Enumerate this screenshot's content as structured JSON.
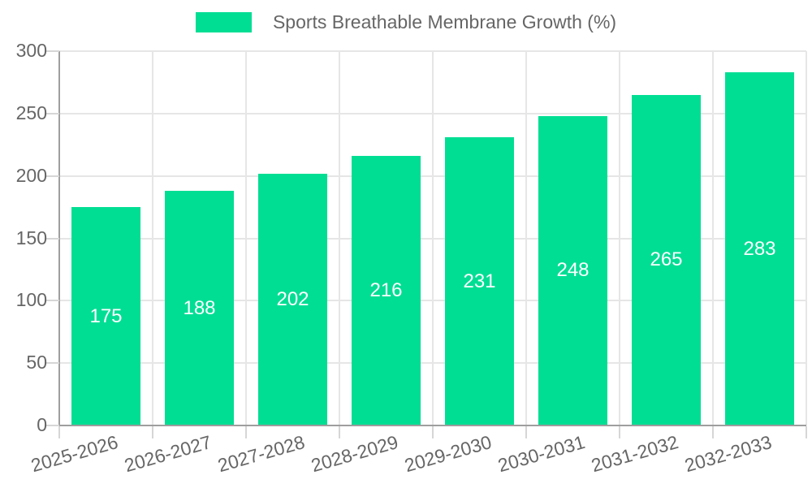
{
  "chart_data": {
    "type": "bar",
    "title": "Sports Breathable Membrane Growth (%)",
    "categories": [
      "2025-2026",
      "2026-2027",
      "2027-2028",
      "2028-2029",
      "2029-2030",
      "2030-2031",
      "2031-2032",
      "2032-2033"
    ],
    "values": [
      175,
      188,
      202,
      216,
      231,
      248,
      265,
      283
    ],
    "xlabel": "",
    "ylabel": "",
    "ylim": [
      0,
      300
    ],
    "y_ticks": [
      0,
      50,
      100,
      150,
      200,
      250,
      300
    ],
    "grid": true,
    "legend_position": "top",
    "colors": {
      "bar": "#00de94",
      "value_label": "#ffffff",
      "tick_text": "#666666",
      "gridline": "#e6e6e6",
      "axis_line": "#9e9e9e"
    }
  }
}
